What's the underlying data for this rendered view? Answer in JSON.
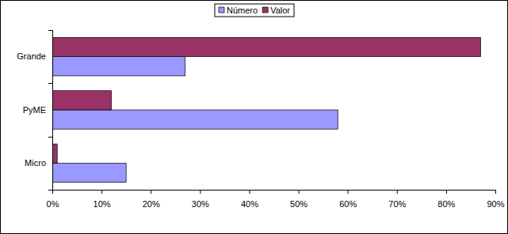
{
  "chart_data": {
    "type": "bar",
    "orientation": "horizontal",
    "categories": [
      "Grande",
      "PyME",
      "Micro"
    ],
    "series": [
      {
        "name": "Número",
        "color": "#9999ff",
        "values": [
          27,
          58,
          15
        ]
      },
      {
        "name": "Valor",
        "color": "#993366",
        "values": [
          87,
          12,
          1
        ]
      }
    ],
    "xlim": [
      0,
      90
    ],
    "xticks": [
      {
        "value": 0,
        "label": "0%"
      },
      {
        "value": 10,
        "label": "10%"
      },
      {
        "value": 20,
        "label": "20%"
      },
      {
        "value": 30,
        "label": "30%"
      },
      {
        "value": 40,
        "label": "40%"
      },
      {
        "value": 50,
        "label": "50%"
      },
      {
        "value": 60,
        "label": "60%"
      },
      {
        "value": 70,
        "label": "70%"
      },
      {
        "value": 80,
        "label": "80%"
      },
      {
        "value": 90,
        "label": "90%"
      }
    ],
    "legend": "top",
    "grid": false
  }
}
